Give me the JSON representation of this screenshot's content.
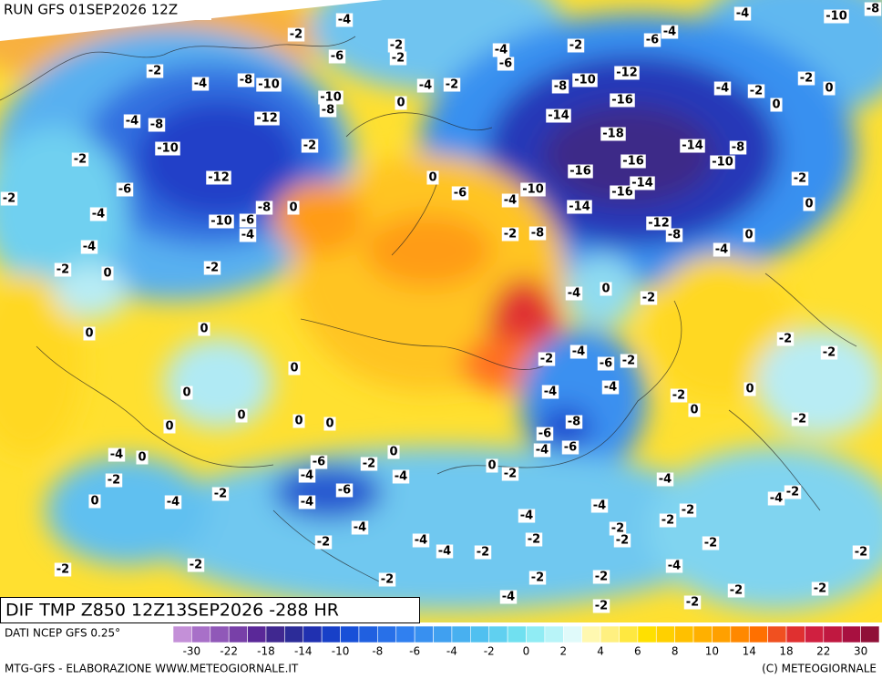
{
  "header": {
    "title": "RUN GFS 01SEP2026 12Z"
  },
  "map": {
    "title": "DIF TMP Z850 12Z13SEP2026 -288 HR",
    "labels": [
      -4,
      -2,
      -2,
      -6,
      -2,
      -4,
      -6,
      -2,
      -6,
      -4,
      -4,
      -10,
      -8,
      -2,
      -4,
      -8,
      -10,
      -10,
      -8,
      0,
      -4,
      -2,
      -8,
      -10,
      -12,
      -4,
      -2,
      -2,
      0,
      -4,
      -8,
      -12,
      -14,
      -16,
      0,
      -10,
      -2,
      -18,
      -14,
      -8,
      -2,
      -10,
      -12,
      -16,
      -16,
      0,
      -2,
      -6,
      -6,
      -4,
      -10,
      -16,
      -14,
      -2,
      0,
      -8,
      -14,
      0,
      -4,
      -10,
      -6,
      -4,
      -2,
      -8,
      -12,
      -8,
      0,
      -4,
      -4,
      -2,
      -2,
      0,
      -4,
      0,
      -2,
      0,
      0,
      -2,
      -2,
      -2,
      -4,
      -6,
      -2,
      0,
      0,
      -4,
      -4,
      -2,
      0,
      0,
      0,
      0,
      0,
      -2,
      0,
      -6,
      -8,
      -4,
      0,
      -6,
      -2,
      0,
      -4,
      -6,
      0,
      -2,
      -4,
      -4,
      -2,
      -4,
      -6,
      -2,
      -4,
      0,
      -4,
      -4,
      -4,
      -2,
      -4,
      -2,
      -2,
      -2,
      -4,
      -2,
      -4,
      -4,
      -2,
      -2,
      -2,
      -2,
      -2,
      -4,
      -2,
      -2,
      -2,
      -2,
      -2,
      -2,
      -2,
      -4,
      -2,
      -2
    ]
  },
  "colorbar": {
    "colors": [
      "#c490d8",
      "#a870c8",
      "#9058b8",
      "#7840a8",
      "#5a2898",
      "#402890",
      "#2c2c98",
      "#2030b0",
      "#1840c8",
      "#1850d8",
      "#2060e0",
      "#2870e8",
      "#3080f0",
      "#3890f0",
      "#40a0f0",
      "#48b0f0",
      "#50c0f0",
      "#60d0f0",
      "#70e0f0",
      "#90ecf4",
      "#b8f4f8",
      "#e0fafa",
      "#fff8b0",
      "#fff080",
      "#ffe840",
      "#ffe000",
      "#ffd000",
      "#ffc000",
      "#ffb000",
      "#ffa000",
      "#ff8800",
      "#ff7000",
      "#f05020",
      "#e03030",
      "#d02040",
      "#c01840",
      "#a81040",
      "#901038"
    ],
    "labels": [
      -30,
      -22,
      -18,
      -14,
      -10,
      -8,
      -6,
      -4,
      -2,
      0,
      2,
      4,
      6,
      8,
      10,
      14,
      18,
      22,
      30
    ]
  },
  "footer": {
    "source": "DATI NCEP GFS 0.25°",
    "credit": "MTG-GFS - ELABORAZIONE WWW.METEOGIORNALE.IT",
    "copyright": "(C) METEOGIORNALE"
  }
}
